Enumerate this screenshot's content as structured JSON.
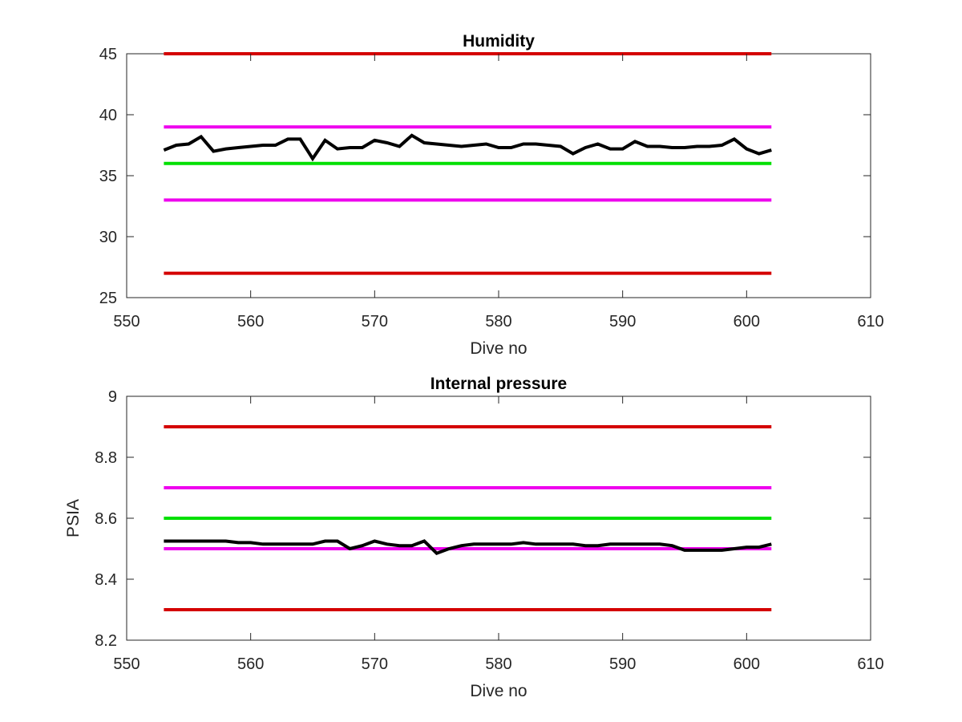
{
  "chart_data": [
    {
      "type": "line",
      "title": "Humidity",
      "xlabel": "Dive no",
      "ylabel": "",
      "xlim": [
        550,
        610
      ],
      "ylim": [
        25,
        45
      ],
      "xticks": [
        550,
        560,
        570,
        580,
        590,
        600,
        610
      ],
      "yticks": [
        25,
        30,
        35,
        40,
        45
      ],
      "grid": false,
      "legend": "none",
      "thresholds": [
        {
          "y": 45,
          "x": [
            553,
            602
          ],
          "color": "#d40000"
        },
        {
          "y": 39,
          "x": [
            553,
            602
          ],
          "color": "#ee00ee"
        },
        {
          "y": 36,
          "x": [
            553,
            602
          ],
          "color": "#00e000"
        },
        {
          "y": 33,
          "x": [
            553,
            602
          ],
          "color": "#ee00ee"
        },
        {
          "y": 27,
          "x": [
            553,
            602
          ],
          "color": "#d40000"
        }
      ],
      "series": [
        {
          "color": "#000000",
          "x": [
            553,
            554,
            555,
            556,
            557,
            558,
            559,
            560,
            561,
            562,
            563,
            564,
            565,
            566,
            567,
            568,
            569,
            570,
            571,
            572,
            573,
            574,
            575,
            576,
            577,
            578,
            579,
            580,
            581,
            582,
            583,
            584,
            585,
            586,
            587,
            588,
            589,
            590,
            591,
            592,
            593,
            594,
            595,
            596,
            597,
            598,
            599,
            600,
            601,
            602
          ],
          "values": [
            37.1,
            37.5,
            37.6,
            38.2,
            37.0,
            37.2,
            37.3,
            37.4,
            37.5,
            37.5,
            38.0,
            38.0,
            36.4,
            37.9,
            37.2,
            37.3,
            37.3,
            37.9,
            37.7,
            37.4,
            38.3,
            37.7,
            37.6,
            37.5,
            37.4,
            37.5,
            37.6,
            37.3,
            37.3,
            37.6,
            37.6,
            37.5,
            37.4,
            36.8,
            37.3,
            37.6,
            37.2,
            37.2,
            37.8,
            37.4,
            37.4,
            37.3,
            37.3,
            37.4,
            37.4,
            37.5,
            38.0,
            37.2,
            36.8,
            37.1
          ]
        }
      ]
    },
    {
      "type": "line",
      "title": "Internal pressure",
      "xlabel": "Dive no",
      "ylabel": "PSIA",
      "xlim": [
        550,
        610
      ],
      "ylim": [
        8.2,
        9.0
      ],
      "xticks": [
        550,
        560,
        570,
        580,
        590,
        600,
        610
      ],
      "yticks": [
        8.2,
        8.4,
        8.6,
        8.8,
        9.0
      ],
      "ytick_labels": [
        "8.2",
        "8.4",
        "8.6",
        "8.8",
        "9"
      ],
      "grid": false,
      "legend": "none",
      "thresholds": [
        {
          "y": 8.9,
          "x": [
            553,
            602
          ],
          "color": "#d40000"
        },
        {
          "y": 8.7,
          "x": [
            553,
            602
          ],
          "color": "#ee00ee"
        },
        {
          "y": 8.6,
          "x": [
            553,
            602
          ],
          "color": "#00e000"
        },
        {
          "y": 8.5,
          "x": [
            553,
            602
          ],
          "color": "#ee00ee"
        },
        {
          "y": 8.3,
          "x": [
            553,
            602
          ],
          "color": "#d40000"
        }
      ],
      "series": [
        {
          "color": "#000000",
          "x": [
            553,
            554,
            555,
            556,
            557,
            558,
            559,
            560,
            561,
            562,
            563,
            564,
            565,
            566,
            567,
            568,
            569,
            570,
            571,
            572,
            573,
            574,
            575,
            576,
            577,
            578,
            579,
            580,
            581,
            582,
            583,
            584,
            585,
            586,
            587,
            588,
            589,
            590,
            591,
            592,
            593,
            594,
            595,
            596,
            597,
            598,
            599,
            600,
            601,
            602
          ],
          "values": [
            8.525,
            8.525,
            8.525,
            8.525,
            8.525,
            8.525,
            8.52,
            8.52,
            8.515,
            8.515,
            8.515,
            8.515,
            8.515,
            8.525,
            8.525,
            8.5,
            8.51,
            8.525,
            8.515,
            8.51,
            8.51,
            8.525,
            8.485,
            8.5,
            8.51,
            8.515,
            8.515,
            8.515,
            8.515,
            8.52,
            8.515,
            8.515,
            8.515,
            8.515,
            8.51,
            8.51,
            8.515,
            8.515,
            8.515,
            8.515,
            8.515,
            8.51,
            8.495,
            8.495,
            8.495,
            8.495,
            8.5,
            8.505,
            8.505,
            8.515
          ]
        }
      ]
    }
  ]
}
